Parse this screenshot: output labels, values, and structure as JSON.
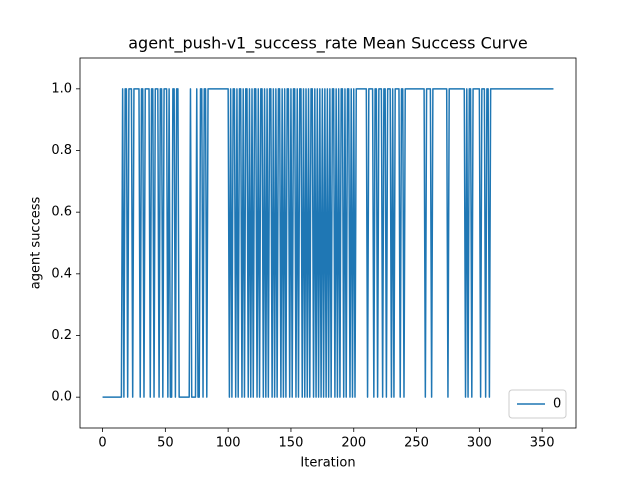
{
  "chart_data": {
    "type": "line",
    "title": "agent_push-v1_success_rate Mean Success Curve",
    "xlabel": "Iteration",
    "ylabel": "agent success",
    "x": [
      0,
      1,
      2,
      3,
      4,
      5,
      6,
      7,
      8,
      9,
      10,
      11,
      12,
      13,
      14,
      15,
      16,
      17,
      18,
      19,
      20,
      21,
      22,
      23,
      24,
      25,
      26,
      27,
      28,
      29,
      30,
      31,
      32,
      33,
      34,
      35,
      36,
      37,
      38,
      39,
      40,
      41,
      42,
      43,
      44,
      45,
      46,
      47,
      48,
      49,
      50,
      51,
      52,
      53,
      54,
      55,
      56,
      57,
      58,
      59,
      60,
      61,
      62,
      63,
      64,
      65,
      66,
      67,
      68,
      69,
      70,
      71,
      72,
      73,
      74,
      75,
      76,
      77,
      78,
      79,
      80,
      81,
      82,
      83,
      84,
      85,
      86,
      87,
      88,
      89,
      90,
      91,
      92,
      93,
      94,
      95,
      96,
      97,
      98,
      99,
      100,
      101,
      102,
      103,
      104,
      105,
      106,
      107,
      108,
      109,
      110,
      111,
      112,
      113,
      114,
      115,
      116,
      117,
      118,
      119,
      120,
      121,
      122,
      123,
      124,
      125,
      126,
      127,
      128,
      129,
      130,
      131,
      132,
      133,
      134,
      135,
      136,
      137,
      138,
      139,
      140,
      141,
      142,
      143,
      144,
      145,
      146,
      147,
      148,
      149,
      150,
      151,
      152,
      153,
      154,
      155,
      156,
      157,
      158,
      159,
      160,
      161,
      162,
      163,
      164,
      165,
      166,
      167,
      168,
      169,
      170,
      171,
      172,
      173,
      174,
      175,
      176,
      177,
      178,
      179,
      180,
      181,
      182,
      183,
      184,
      185,
      186,
      187,
      188,
      189,
      190,
      191,
      192,
      193,
      194,
      195,
      196,
      197,
      198,
      199,
      200,
      201,
      202,
      203,
      204,
      205,
      206,
      207,
      208,
      209,
      210,
      211,
      212,
      213,
      214,
      215,
      216,
      217,
      218,
      219,
      220,
      221,
      222,
      223,
      224,
      225,
      226,
      227,
      228,
      229,
      230,
      231,
      232,
      233,
      234,
      235,
      236,
      237,
      238,
      239,
      240,
      241,
      242,
      243,
      244,
      245,
      246,
      247,
      248,
      249,
      250,
      251,
      252,
      253,
      254,
      255,
      256,
      257,
      258,
      259,
      260,
      261,
      262,
      263,
      264,
      265,
      266,
      267,
      268,
      269,
      270,
      271,
      272,
      273,
      274,
      275,
      276,
      277,
      278,
      279,
      280,
      281,
      282,
      283,
      284,
      285,
      286,
      287,
      288,
      289,
      290,
      291,
      292,
      293,
      294,
      295,
      296,
      297,
      298,
      299,
      300,
      301,
      302,
      303,
      304,
      305,
      306,
      307,
      308,
      309,
      310,
      311,
      312,
      313,
      314,
      315,
      316,
      317,
      318,
      319,
      320,
      321,
      322,
      323,
      324,
      325,
      326,
      327,
      328,
      329,
      330,
      331,
      332,
      333,
      334,
      335,
      336,
      337,
      338,
      339,
      340,
      341,
      342,
      343,
      344,
      345,
      346,
      347,
      348,
      349,
      350,
      351,
      352,
      353,
      354,
      355,
      356,
      357,
      358,
      359
    ],
    "series": [
      {
        "name": "0",
        "color": "#1f77b4",
        "values": [
          0,
          0,
          0,
          0,
          0,
          0,
          0,
          0,
          0,
          0,
          0,
          0,
          0,
          0,
          0,
          0,
          1,
          0,
          1,
          1,
          0,
          1,
          1,
          1,
          0,
          1,
          1,
          1,
          1,
          1,
          0,
          1,
          1,
          0,
          1,
          1,
          1,
          1,
          0,
          1,
          1,
          0,
          1,
          1,
          1,
          0,
          1,
          1,
          0,
          1,
          1,
          1,
          0,
          1,
          0,
          0,
          1,
          1,
          0,
          1,
          1,
          0,
          0,
          0,
          0,
          0,
          0,
          0,
          0,
          0,
          1,
          0,
          0,
          0,
          0,
          1,
          0,
          0,
          1,
          1,
          0,
          1,
          1,
          0,
          1,
          1,
          1,
          1,
          1,
          1,
          1,
          1,
          1,
          1,
          1,
          1,
          1,
          1,
          1,
          1,
          1,
          0,
          1,
          0,
          1,
          1,
          0,
          1,
          0,
          1,
          1,
          0,
          1,
          0,
          1,
          1,
          0,
          1,
          0,
          1,
          0,
          1,
          1,
          0,
          1,
          0,
          1,
          1,
          0,
          1,
          0,
          1,
          0,
          1,
          1,
          0,
          1,
          0,
          1,
          0,
          1,
          1,
          0,
          1,
          0,
          1,
          0,
          1,
          1,
          0,
          1,
          0,
          1,
          1,
          0,
          1,
          0,
          1,
          1,
          0,
          1,
          0,
          1,
          0,
          1,
          0,
          1,
          1,
          0,
          1,
          0,
          1,
          0,
          1,
          0,
          1,
          0,
          1,
          0,
          1,
          0,
          1,
          0,
          1,
          1,
          0,
          1,
          0,
          1,
          0,
          1,
          1,
          0,
          1,
          0,
          1,
          1,
          0,
          1,
          0,
          1,
          0,
          1,
          1,
          1,
          1,
          1,
          1,
          1,
          1,
          1,
          0,
          1,
          1,
          1,
          1,
          0,
          1,
          1,
          0,
          1,
          1,
          1,
          0,
          1,
          1,
          0,
          1,
          1,
          1,
          0,
          1,
          0,
          1,
          1,
          1,
          1,
          0,
          1,
          1,
          0,
          1,
          1,
          1,
          1,
          1,
          1,
          1,
          1,
          1,
          1,
          1,
          1,
          1,
          1,
          1,
          1,
          0,
          1,
          1,
          1,
          1,
          0,
          1,
          1,
          1,
          1,
          1,
          1,
          1,
          1,
          1,
          1,
          1,
          1,
          0,
          1,
          1,
          1,
          1,
          1,
          1,
          1,
          1,
          1,
          1,
          1,
          1,
          1,
          0,
          1,
          0,
          1,
          1,
          0,
          1,
          1,
          1,
          1,
          1,
          1,
          0,
          1,
          1,
          1,
          0,
          1,
          1,
          0,
          1,
          1,
          1,
          1,
          1,
          1,
          1,
          1,
          1,
          1,
          1,
          1,
          1,
          1,
          1,
          1,
          1,
          1,
          1,
          1,
          1,
          1,
          1,
          1,
          1,
          1,
          1,
          1,
          1,
          1,
          1,
          1,
          1,
          1,
          1,
          1,
          1,
          1,
          1,
          1,
          1,
          1,
          1,
          1,
          1,
          1,
          1,
          1,
          1,
          1,
          1
        ]
      }
    ],
    "xlim": [
      -17.95,
      376.95
    ],
    "xticks": [
      0,
      50,
      100,
      150,
      200,
      250,
      300,
      350
    ],
    "ylim": [
      -0.1,
      1.1
    ],
    "yticks": [
      {
        "value": 0,
        "label": "0.0"
      },
      {
        "value": 0.2,
        "label": "0.2"
      },
      {
        "value": 0.4,
        "label": "0.4"
      },
      {
        "value": 0.6,
        "label": "0.6"
      },
      {
        "value": 0.8,
        "label": "0.8"
      },
      {
        "value": 1,
        "label": "1.0"
      }
    ],
    "legend": "lower right"
  }
}
